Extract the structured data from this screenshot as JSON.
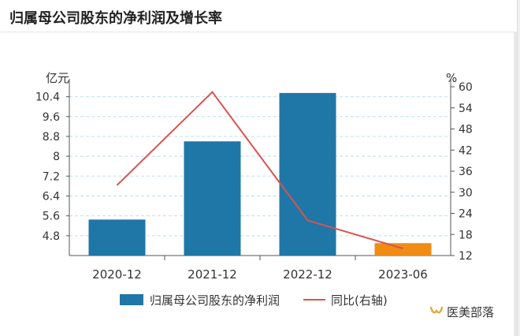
{
  "header": {
    "title": "归属母公司股东的净利润及增长率"
  },
  "watermark": {
    "text": "医美部落",
    "icon": "wechat-channel-icon"
  },
  "chart_data": {
    "type": "bar",
    "categories": [
      "2020-12",
      "2021-12",
      "2022-12",
      "2023-06"
    ],
    "series": [
      {
        "name": "归属母公司股东的净利润",
        "type": "bar",
        "axis": "left",
        "values": [
          5.45,
          8.6,
          10.55,
          4.5
        ],
        "colors": [
          "#1f77a7",
          "#1f77a7",
          "#1f77a7",
          "#f08c14"
        ]
      },
      {
        "name": "同比(右轴)",
        "type": "line",
        "axis": "right",
        "values": [
          32,
          58.5,
          22,
          14
        ],
        "color": "#d9534f"
      }
    ],
    "y_left": {
      "unit": "亿元",
      "ticks": [
        "10.4",
        "9.6",
        "8.8",
        "8",
        "7.2",
        "6.4",
        "5.6",
        "4.8"
      ],
      "tick_values": [
        10.4,
        9.6,
        8.8,
        8,
        7.2,
        6.4,
        5.6,
        4.8
      ],
      "range": [
        4.0,
        10.8
      ]
    },
    "y_right": {
      "unit": "%",
      "ticks": [
        "60",
        "54",
        "48",
        "42",
        "36",
        "30",
        "24",
        "18",
        "12"
      ],
      "tick_values": [
        60,
        54,
        48,
        42,
        36,
        30,
        24,
        18,
        12
      ],
      "range": [
        12,
        60
      ]
    },
    "grid": true,
    "legend_position": "bottom"
  }
}
